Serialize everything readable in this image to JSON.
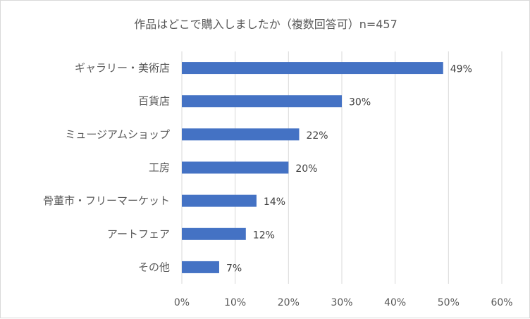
{
  "chart_data": {
    "type": "bar",
    "orientation": "horizontal",
    "title": "作品はどこで購入しましたか（複数回答可）n=457",
    "categories": [
      "ギャラリー・美術店",
      "百貨店",
      "ミュージアムショップ",
      "工房",
      "骨董市・フリーマーケット",
      "アートフェア",
      "その他"
    ],
    "values": [
      49,
      30,
      22,
      20,
      14,
      12,
      7
    ],
    "value_labels": [
      "49%",
      "30%",
      "22%",
      "20%",
      "14%",
      "12%",
      "7%"
    ],
    "xlim": [
      0,
      60
    ],
    "x_ticks": [
      0,
      10,
      20,
      30,
      40,
      50,
      60
    ],
    "x_tick_labels": [
      "0%",
      "10%",
      "20%",
      "30%",
      "40%",
      "50%",
      "60%"
    ],
    "grid": "vertical",
    "legend": "none",
    "bar_color": "#4472c4"
  }
}
